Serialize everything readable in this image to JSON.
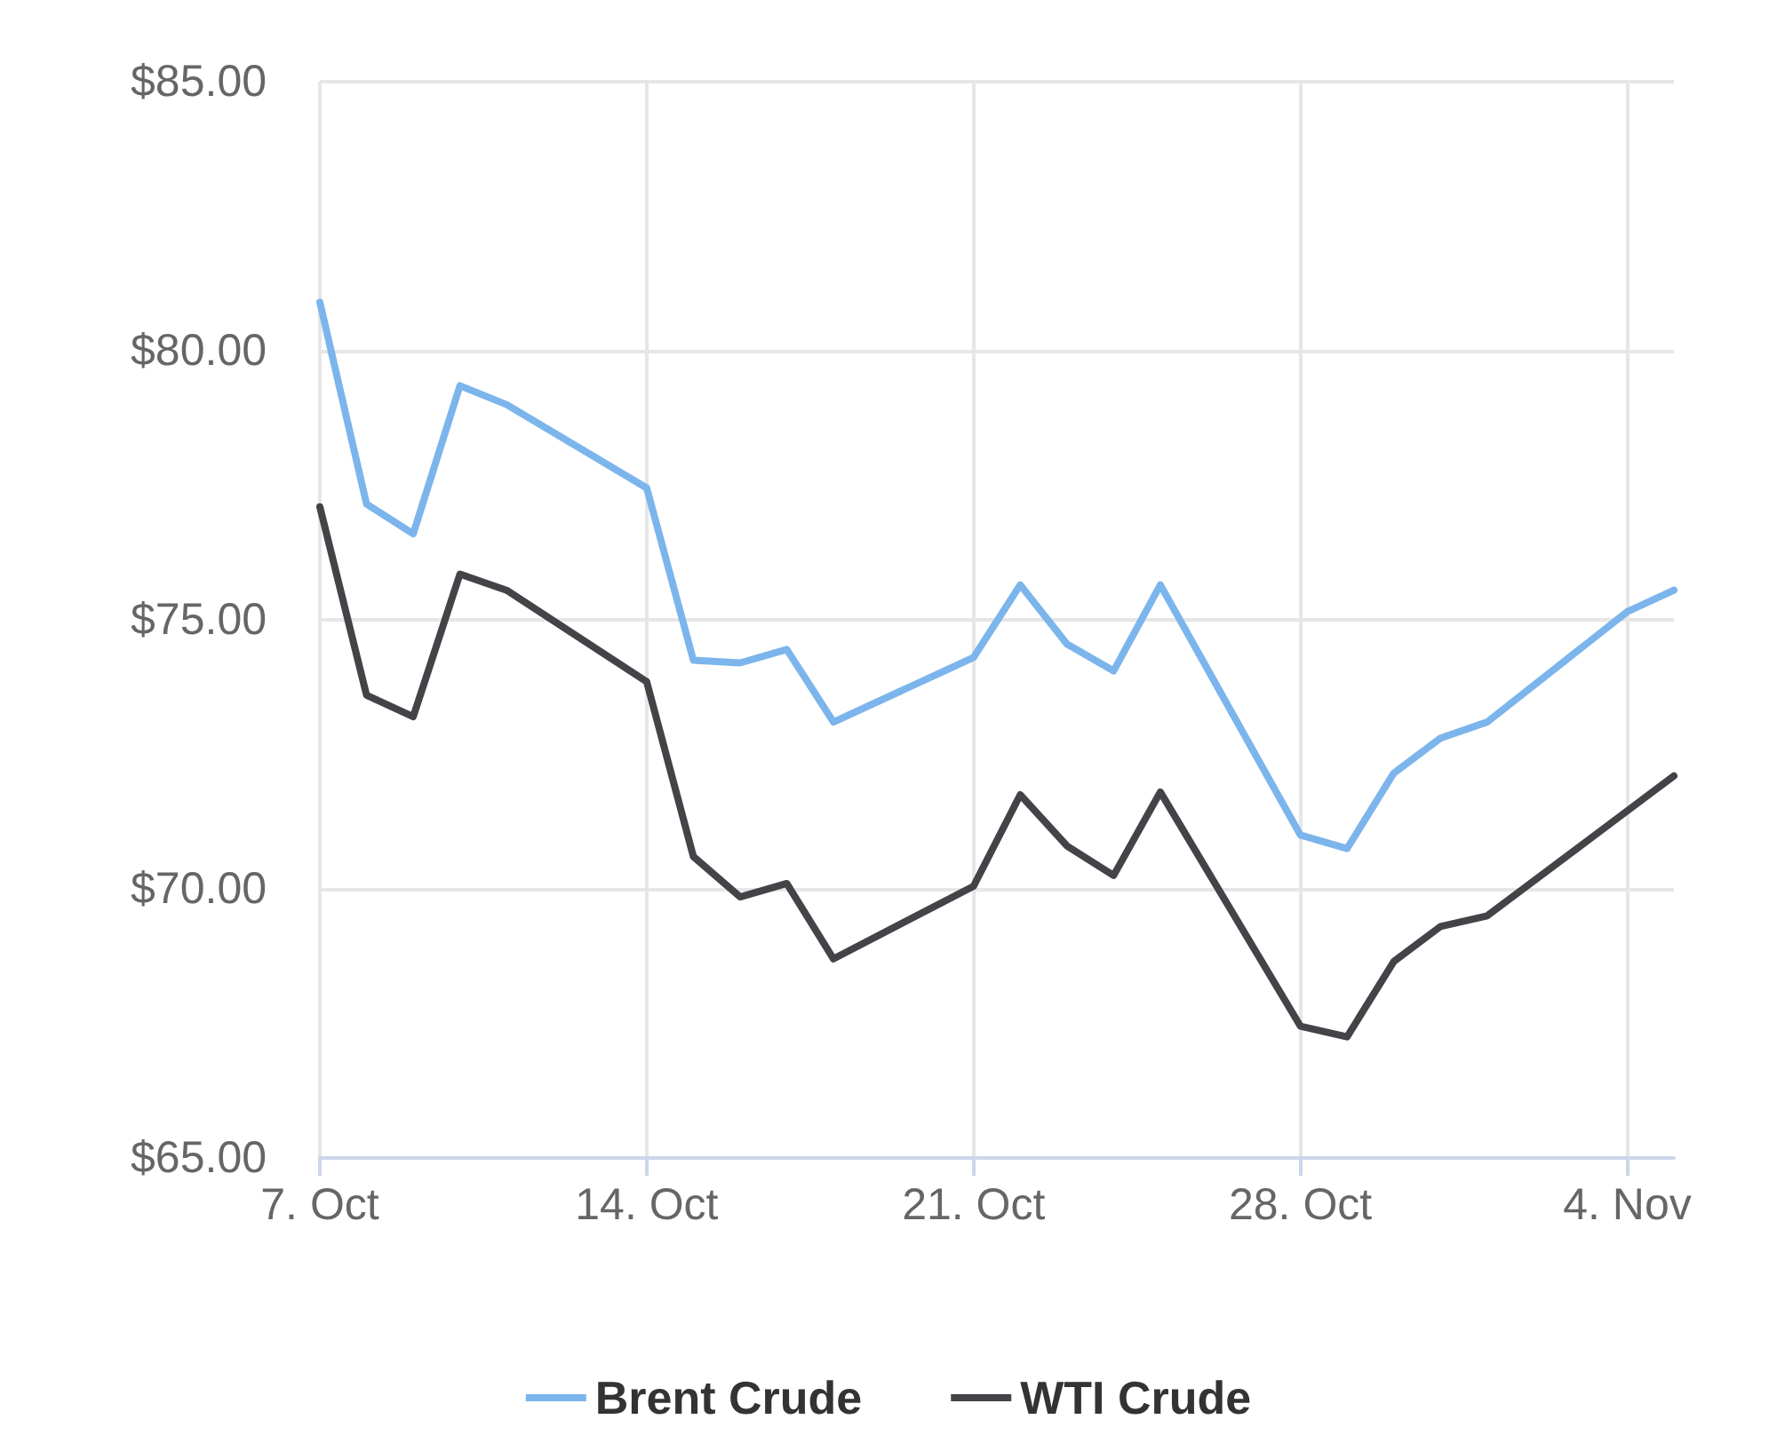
{
  "chart_data": {
    "type": "line",
    "x": [
      "--10-07",
      "--10-08",
      "--10-09",
      "--10-10",
      "--10-11",
      "--10-14",
      "--10-15",
      "--10-16",
      "--10-17",
      "--10-18",
      "--10-21",
      "--10-22",
      "--10-23",
      "--10-24",
      "--10-25",
      "--10-28",
      "--10-29",
      "--10-30",
      "--10-31",
      "--11-01",
      "--11-04",
      "--11-05"
    ],
    "series": [
      {
        "name": "Brent Crude",
        "color": "#7cb5ec",
        "values": [
          80.9,
          77.15,
          76.6,
          79.35,
          79.0,
          77.45,
          74.25,
          74.2,
          74.45,
          73.1,
          74.3,
          75.65,
          74.55,
          74.05,
          75.65,
          71.0,
          70.75,
          72.15,
          72.8,
          73.1,
          75.15,
          75.55
        ]
      },
      {
        "name": "WTI Crude",
        "color": "#434348",
        "values": [
          77.1,
          73.6,
          73.2,
          75.85,
          75.55,
          73.85,
          70.6,
          69.85,
          70.1,
          68.7,
          70.05,
          71.75,
          70.8,
          70.25,
          71.8,
          67.45,
          67.25,
          68.65,
          69.3,
          69.5,
          71.45,
          72.1
        ]
      }
    ],
    "xlim": [
      "--10-07",
      "--11-05"
    ],
    "xticks": [
      {
        "value": "--10-07",
        "label": "7. Oct"
      },
      {
        "value": "--10-14",
        "label": "14. Oct"
      },
      {
        "value": "--10-21",
        "label": "21. Oct"
      },
      {
        "value": "--10-28",
        "label": "28. Oct"
      },
      {
        "value": "--11-04",
        "label": "4. Nov"
      }
    ],
    "ylim": [
      65,
      85
    ],
    "yticks": [
      {
        "value": 65,
        "label": "$65.00"
      },
      {
        "value": 70,
        "label": "$70.00"
      },
      {
        "value": 75,
        "label": "$75.00"
      },
      {
        "value": 80,
        "label": "$80.00"
      },
      {
        "value": 85,
        "label": "$85.00"
      }
    ],
    "grid": true,
    "legend": "bottom",
    "marker": "none",
    "line_style": "solid"
  }
}
